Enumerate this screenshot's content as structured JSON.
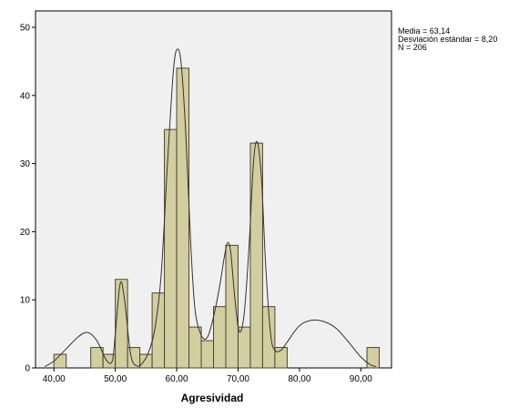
{
  "chart_data": {
    "type": "bar",
    "subtype": "histogram",
    "xlabel": "Agresividad",
    "ylabel": "",
    "xlim": [
      37,
      95
    ],
    "ylim": [
      0,
      50
    ],
    "bin_width": 2,
    "xticks": [
      40,
      50,
      60,
      70,
      80,
      90
    ],
    "xtick_labels": [
      "40,00",
      "50,00",
      "60,00",
      "70,00",
      "80,00",
      "90,00"
    ],
    "yticks": [
      0,
      10,
      20,
      30,
      40,
      50
    ],
    "ytick_labels": [
      "0",
      "10",
      "20",
      "30",
      "40",
      "50"
    ],
    "bins": [
      {
        "x": 41,
        "count": 2
      },
      {
        "x": 47,
        "count": 3
      },
      {
        "x": 49,
        "count": 2
      },
      {
        "x": 51,
        "count": 13
      },
      {
        "x": 53,
        "count": 3
      },
      {
        "x": 55,
        "count": 2
      },
      {
        "x": 57,
        "count": 11
      },
      {
        "x": 59,
        "count": 35
      },
      {
        "x": 61,
        "count": 44
      },
      {
        "x": 63,
        "count": 6
      },
      {
        "x": 65,
        "count": 4
      },
      {
        "x": 67,
        "count": 9
      },
      {
        "x": 69,
        "count": 18
      },
      {
        "x": 71,
        "count": 6
      },
      {
        "x": 73,
        "count": 33
      },
      {
        "x": 75,
        "count": 9
      },
      {
        "x": 77,
        "count": 3
      },
      {
        "x": 92,
        "count": 3
      }
    ],
    "curve": [
      [
        38.5,
        0.2
      ],
      [
        40,
        1.0
      ],
      [
        42,
        2.8
      ],
      [
        44,
        4.6
      ],
      [
        45.5,
        5.2
      ],
      [
        47,
        4.0
      ],
      [
        48.5,
        1.2
      ],
      [
        49.5,
        1.0
      ],
      [
        50,
        5
      ],
      [
        50.8,
        12.4
      ],
      [
        51.5,
        10
      ],
      [
        52.5,
        2
      ],
      [
        53.5,
        0.3
      ],
      [
        54.5,
        0.8
      ],
      [
        55.5,
        2.5
      ],
      [
        56.5,
        6
      ],
      [
        57.5,
        14
      ],
      [
        58.5,
        30
      ],
      [
        59.5,
        44
      ],
      [
        60.2,
        46.8
      ],
      [
        60.8,
        44
      ],
      [
        61.5,
        34
      ],
      [
        62.3,
        18
      ],
      [
        63,
        8.5
      ],
      [
        64,
        4.8
      ],
      [
        65,
        4.5
      ],
      [
        66,
        7.5
      ],
      [
        67,
        12
      ],
      [
        67.8,
        16.5
      ],
      [
        68.3,
        18.4
      ],
      [
        68.8,
        17
      ],
      [
        69.5,
        10
      ],
      [
        70.2,
        5.3
      ],
      [
        71,
        8
      ],
      [
        71.8,
        18
      ],
      [
        72.5,
        30
      ],
      [
        73.1,
        33.2
      ],
      [
        73.8,
        28
      ],
      [
        74.5,
        15
      ],
      [
        75.3,
        5
      ],
      [
        76,
        2.6
      ],
      [
        77,
        2.6
      ],
      [
        78,
        3.8
      ],
      [
        80,
        6.2
      ],
      [
        82,
        7.0
      ],
      [
        84,
        6.8
      ],
      [
        86,
        5.8
      ],
      [
        88,
        3.8
      ],
      [
        90,
        1.6
      ],
      [
        91.5,
        0.5
      ],
      [
        92.5,
        0.2
      ]
    ],
    "stats": {
      "mean": "Media = 63,14",
      "sd": "Desviación estándar = 8,20",
      "n": "N = 206"
    },
    "colors": {
      "bar_fill": "#d3cea0",
      "bar_stroke": "#4a4630",
      "plot_background": "#f0f0f0",
      "curve": "#333333"
    }
  }
}
